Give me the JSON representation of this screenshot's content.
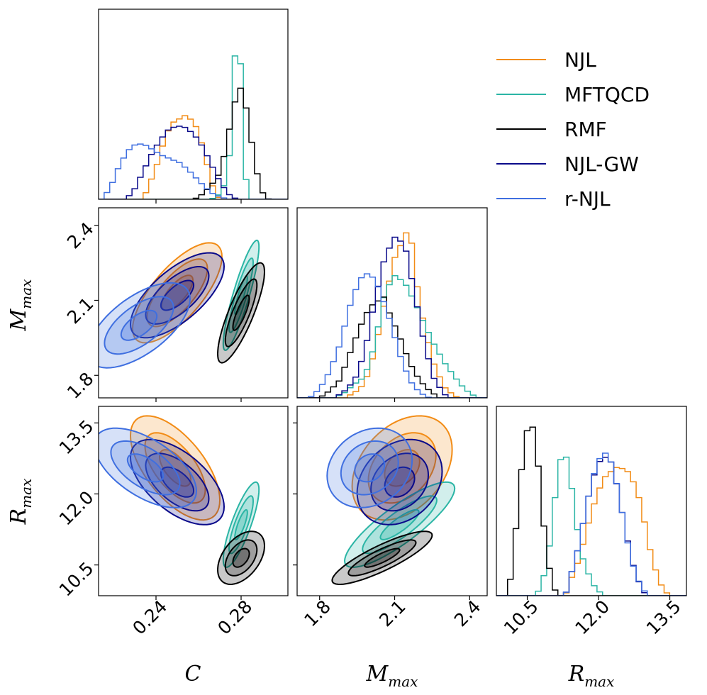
{
  "chart_data": {
    "type": "corner",
    "parameters": [
      {
        "key": "C",
        "label": "C",
        "range": [
          0.213,
          0.302
        ],
        "ticks": [
          "0.24",
          "0.28"
        ],
        "tick_values": [
          0.24,
          0.28
        ]
      },
      {
        "key": "M",
        "label": "M",
        "label_sub": "max",
        "range": [
          1.71,
          2.47
        ],
        "ticks": [
          "1.8",
          "2.1",
          "2.4"
        ],
        "tick_values": [
          1.8,
          2.1,
          2.4
        ]
      },
      {
        "key": "R",
        "label": "R",
        "label_sub": "max",
        "range": [
          9.85,
          13.85
        ],
        "ticks": [
          "10.5",
          "12.0",
          "13.5"
        ],
        "tick_values": [
          10.5,
          12.0,
          13.5
        ]
      }
    ],
    "legend": {
      "placement": "top-right"
    },
    "series": [
      {
        "name": "NJL",
        "color": "#f28c16",
        "diag": {
          "C": [
            [
              0.233,
              0.0
            ],
            [
              0.236,
              0.05
            ],
            [
              0.238,
              0.12
            ],
            [
              0.24,
              0.18
            ],
            [
              0.242,
              0.26
            ],
            [
              0.244,
              0.34
            ],
            [
              0.246,
              0.4
            ],
            [
              0.248,
              0.44
            ],
            [
              0.25,
              0.45
            ],
            [
              0.252,
              0.47
            ],
            [
              0.254,
              0.48
            ],
            [
              0.256,
              0.46
            ],
            [
              0.258,
              0.44
            ],
            [
              0.26,
              0.38
            ],
            [
              0.262,
              0.3
            ],
            [
              0.264,
              0.2
            ],
            [
              0.266,
              0.1
            ],
            [
              0.268,
              0.03
            ],
            [
              0.27,
              0.0
            ]
          ],
          "M": [
            [
              1.9,
              0.0
            ],
            [
              1.94,
              0.03
            ],
            [
              1.98,
              0.08
            ],
            [
              2.02,
              0.26
            ],
            [
              2.06,
              0.55
            ],
            [
              2.1,
              0.8
            ],
            [
              2.14,
              0.92
            ],
            [
              2.16,
              1.0
            ],
            [
              2.18,
              0.72
            ],
            [
              2.22,
              0.4
            ],
            [
              2.26,
              0.18
            ],
            [
              2.3,
              0.06
            ],
            [
              2.34,
              0.01
            ],
            [
              2.36,
              0.0
            ]
          ],
          "R": [
            [
              11.3,
              0.0
            ],
            [
              11.4,
              0.08
            ],
            [
              11.55,
              0.18
            ],
            [
              11.7,
              0.32
            ],
            [
              11.85,
              0.48
            ],
            [
              12.0,
              0.6
            ],
            [
              12.1,
              0.67
            ],
            [
              12.2,
              0.7
            ],
            [
              12.4,
              0.74
            ],
            [
              12.6,
              0.72
            ],
            [
              12.8,
              0.62
            ],
            [
              12.95,
              0.45
            ],
            [
              13.05,
              0.3
            ],
            [
              13.2,
              0.15
            ],
            [
              13.35,
              0.04
            ],
            [
              13.5,
              0.0
            ]
          ]
        },
        "pairs": {
          "C_M": {
            "mean": [
              0.25,
              2.13
            ],
            "sd": [
              0.0105,
              0.1
            ],
            "rho": 0.72
          },
          "C_R": {
            "mean": [
              0.249,
              12.55
            ],
            "sd": [
              0.0105,
              0.55
            ],
            "rho": -0.62
          },
          "M_R": {
            "mean": [
              2.13,
              12.55
            ],
            "sd": [
              0.1,
              0.55
            ],
            "rho": 0.35
          }
        }
      },
      {
        "name": "MFTQCD",
        "color": "#2bb5a5",
        "diag": {
          "C": [
            [
              0.266,
              0.0
            ],
            [
              0.27,
              0.03
            ],
            [
              0.272,
              0.08
            ],
            [
              0.274,
              0.18
            ],
            [
              0.276,
              0.45
            ],
            [
              0.277,
              0.8
            ],
            [
              0.278,
              0.95
            ],
            [
              0.279,
              1.0
            ],
            [
              0.28,
              0.7
            ],
            [
              0.281,
              0.4
            ],
            [
              0.282,
              0.15
            ],
            [
              0.283,
              0.05
            ],
            [
              0.285,
              0.0
            ]
          ],
          "M": [
            [
              1.86,
              0.0
            ],
            [
              1.9,
              0.03
            ],
            [
              1.94,
              0.08
            ],
            [
              1.98,
              0.12
            ],
            [
              2.02,
              0.3
            ],
            [
              2.06,
              0.6
            ],
            [
              2.1,
              0.7
            ],
            [
              2.14,
              0.66
            ],
            [
              2.18,
              0.55
            ],
            [
              2.22,
              0.42
            ],
            [
              2.26,
              0.3
            ],
            [
              2.3,
              0.2
            ],
            [
              2.34,
              0.12
            ],
            [
              2.38,
              0.05
            ],
            [
              2.42,
              0.01
            ],
            [
              2.44,
              0.0
            ]
          ],
          "R": [
            [
              10.7,
              0.0
            ],
            [
              10.8,
              0.08
            ],
            [
              10.9,
              0.15
            ],
            [
              11.0,
              0.35
            ],
            [
              11.1,
              0.6
            ],
            [
              11.2,
              0.78
            ],
            [
              11.3,
              0.82
            ],
            [
              11.4,
              0.7
            ],
            [
              11.5,
              0.48
            ],
            [
              11.6,
              0.3
            ],
            [
              11.7,
              0.18
            ],
            [
              11.8,
              0.12
            ],
            [
              11.9,
              0.06
            ],
            [
              12.0,
              0.03
            ],
            [
              12.1,
              0.0
            ]
          ]
        },
        "pairs": {
          "C_M": {
            "mean": [
              0.28,
              2.12
            ],
            "sd": [
              0.0042,
              0.11
            ],
            "rho": 0.88
          },
          "C_R": {
            "mean": [
              0.28,
              11.35
            ],
            "sd": [
              0.0042,
              0.45
            ],
            "rho": 0.82
          },
          "M_R": {
            "mean": [
              2.12,
              11.35
            ],
            "sd": [
              0.11,
              0.45
            ],
            "rho": 0.85
          }
        }
      },
      {
        "name": "RMF",
        "color": "#000000",
        "diag": {
          "C": [
            [
              0.258,
              0.0
            ],
            [
              0.262,
              0.03
            ],
            [
              0.266,
              0.08
            ],
            [
              0.27,
              0.15
            ],
            [
              0.273,
              0.3
            ],
            [
              0.276,
              0.5
            ],
            [
              0.278,
              0.6
            ],
            [
              0.28,
              0.64
            ],
            [
              0.282,
              0.55
            ],
            [
              0.284,
              0.4
            ],
            [
              0.286,
              0.25
            ],
            [
              0.288,
              0.12
            ],
            [
              0.29,
              0.04
            ],
            [
              0.293,
              0.0
            ]
          ],
          "M": [
            [
              1.8,
              0.0
            ],
            [
              1.84,
              0.04
            ],
            [
              1.88,
              0.1
            ],
            [
              1.92,
              0.25
            ],
            [
              1.96,
              0.4
            ],
            [
              2.0,
              0.52
            ],
            [
              2.04,
              0.56
            ],
            [
              2.06,
              0.58
            ],
            [
              2.08,
              0.48
            ],
            [
              2.12,
              0.35
            ],
            [
              2.16,
              0.2
            ],
            [
              2.2,
              0.1
            ],
            [
              2.24,
              0.04
            ],
            [
              2.28,
              0.0
            ]
          ],
          "R": [
            [
              10.05,
              0.0
            ],
            [
              10.15,
              0.1
            ],
            [
              10.25,
              0.35
            ],
            [
              10.35,
              0.65
            ],
            [
              10.45,
              0.9
            ],
            [
              10.55,
              1.0
            ],
            [
              10.65,
              0.95
            ],
            [
              10.75,
              0.7
            ],
            [
              10.85,
              0.4
            ],
            [
              10.95,
              0.18
            ],
            [
              11.05,
              0.05
            ],
            [
              11.15,
              0.0
            ]
          ]
        },
        "pairs": {
          "C_M": {
            "mean": [
              0.28,
              2.05
            ],
            "sd": [
              0.0055,
              0.1
            ],
            "rho": 0.82
          },
          "C_R": {
            "mean": [
              0.28,
              10.65
            ],
            "sd": [
              0.0055,
              0.28
            ],
            "rho": 0.45
          },
          "M_R": {
            "mean": [
              2.05,
              10.65
            ],
            "sd": [
              0.1,
              0.28
            ],
            "rho": 0.85
          }
        }
      },
      {
        "name": "NJL-GW",
        "color": "#0a0a8a",
        "diag": {
          "C": [
            [
              0.226,
              0.0
            ],
            [
              0.23,
              0.06
            ],
            [
              0.234,
              0.16
            ],
            [
              0.238,
              0.26
            ],
            [
              0.242,
              0.34
            ],
            [
              0.246,
              0.4
            ],
            [
              0.25,
              0.42
            ],
            [
              0.254,
              0.41
            ],
            [
              0.258,
              0.37
            ],
            [
              0.262,
              0.3
            ],
            [
              0.266,
              0.2
            ],
            [
              0.27,
              0.1
            ],
            [
              0.274,
              0.03
            ],
            [
              0.278,
              0.0
            ]
          ],
          "M": [
            [
              1.86,
              0.0
            ],
            [
              1.9,
              0.04
            ],
            [
              1.94,
              0.1
            ],
            [
              1.98,
              0.26
            ],
            [
              2.02,
              0.55
            ],
            [
              2.06,
              0.8
            ],
            [
              2.1,
              0.92
            ],
            [
              2.14,
              0.88
            ],
            [
              2.18,
              0.6
            ],
            [
              2.22,
              0.3
            ],
            [
              2.26,
              0.1
            ],
            [
              2.3,
              0.02
            ],
            [
              2.32,
              0.0
            ]
          ],
          "R": [
            [
              11.3,
              0.0
            ],
            [
              11.4,
              0.1
            ],
            [
              11.55,
              0.25
            ],
            [
              11.7,
              0.45
            ],
            [
              11.85,
              0.65
            ],
            [
              12.0,
              0.76
            ],
            [
              12.1,
              0.8
            ],
            [
              12.25,
              0.78
            ],
            [
              12.4,
              0.62
            ],
            [
              12.55,
              0.4
            ],
            [
              12.7,
              0.2
            ],
            [
              12.85,
              0.08
            ],
            [
              13.0,
              0.0
            ]
          ]
        },
        "pairs": {
          "C_M": {
            "mean": [
              0.25,
              2.12
            ],
            "sd": [
              0.011,
              0.085
            ],
            "rho": 0.68
          },
          "C_R": {
            "mean": [
              0.25,
              12.25
            ],
            "sd": [
              0.011,
              0.45
            ],
            "rho": -0.58
          },
          "M_R": {
            "mean": [
              2.12,
              12.25
            ],
            "sd": [
              0.085,
              0.45
            ],
            "rho": 0.25
          }
        }
      },
      {
        "name": "r-NJL",
        "color": "#3f6fe0",
        "diag": {
          "C": [
            [
              0.215,
              0.0
            ],
            [
              0.219,
              0.08
            ],
            [
              0.223,
              0.2
            ],
            [
              0.227,
              0.28
            ],
            [
              0.231,
              0.32
            ],
            [
              0.235,
              0.31
            ],
            [
              0.239,
              0.28
            ],
            [
              0.243,
              0.25
            ],
            [
              0.247,
              0.23
            ],
            [
              0.251,
              0.21
            ],
            [
              0.255,
              0.17
            ],
            [
              0.259,
              0.12
            ],
            [
              0.263,
              0.07
            ],
            [
              0.267,
              0.03
            ],
            [
              0.271,
              0.01
            ],
            [
              0.275,
              0.0
            ]
          ],
          "M": [
            [
              1.76,
              0.0
            ],
            [
              1.8,
              0.05
            ],
            [
              1.84,
              0.15
            ],
            [
              1.88,
              0.3
            ],
            [
              1.92,
              0.52
            ],
            [
              1.96,
              0.68
            ],
            [
              2.0,
              0.72
            ],
            [
              2.04,
              0.62
            ],
            [
              2.08,
              0.45
            ],
            [
              2.12,
              0.25
            ],
            [
              2.16,
              0.1
            ],
            [
              2.2,
              0.03
            ],
            [
              2.24,
              0.0
            ]
          ],
          "R": [
            [
              11.3,
              0.0
            ],
            [
              11.4,
              0.1
            ],
            [
              11.55,
              0.25
            ],
            [
              11.7,
              0.45
            ],
            [
              11.85,
              0.65
            ],
            [
              12.0,
              0.78
            ],
            [
              12.15,
              0.82
            ],
            [
              12.3,
              0.75
            ],
            [
              12.45,
              0.55
            ],
            [
              12.6,
              0.32
            ],
            [
              12.75,
              0.15
            ],
            [
              12.9,
              0.05
            ],
            [
              13.05,
              0.0
            ]
          ]
        },
        "pairs": {
          "C_M": {
            "mean": [
              0.232,
              2.0
            ],
            "sd": [
              0.012,
              0.085
            ],
            "rho": 0.62
          },
          "C_R": {
            "mean": [
              0.235,
              12.55
            ],
            "sd": [
              0.012,
              0.42
            ],
            "rho": -0.58
          },
          "M_R": {
            "mean": [
              2.0,
              12.55
            ],
            "sd": [
              0.085,
              0.42
            ],
            "rho": 0.2
          }
        }
      }
    ]
  }
}
